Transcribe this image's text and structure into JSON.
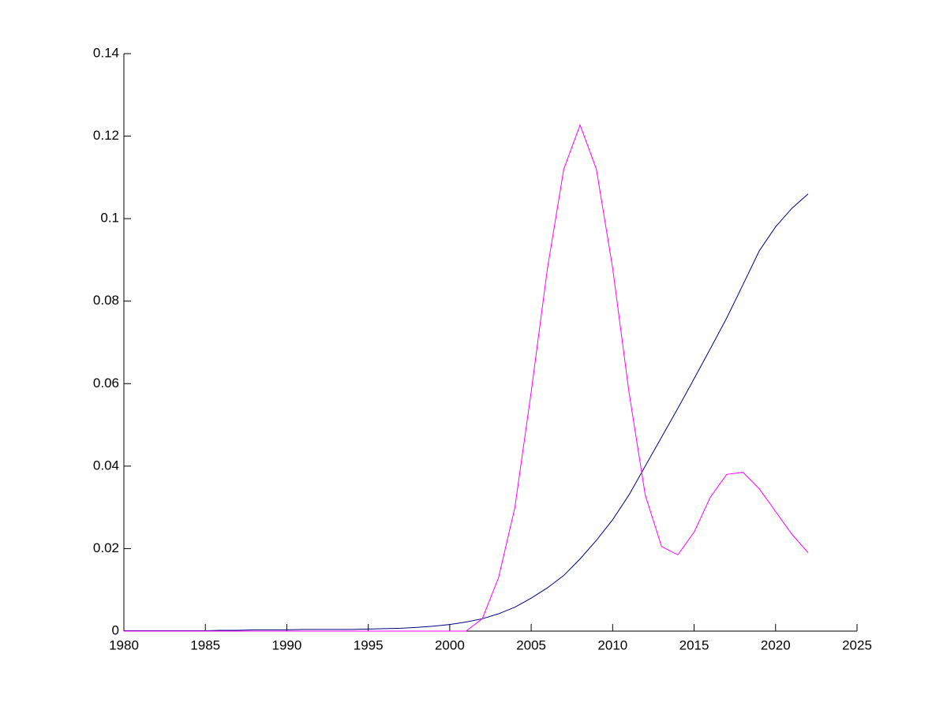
{
  "chart_data": {
    "type": "line",
    "x": [
      1980,
      1981,
      1982,
      1983,
      1984,
      1985,
      1986,
      1987,
      1988,
      1989,
      1990,
      1991,
      1992,
      1993,
      1994,
      1995,
      1996,
      1997,
      1998,
      1999,
      2000,
      2001,
      2002,
      2003,
      2004,
      2005,
      2006,
      2007,
      2008,
      2009,
      2010,
      2011,
      2012,
      2013,
      2014,
      2015,
      2016,
      2017,
      2018,
      2019,
      2020,
      2021,
      2022
    ],
    "series": [
      {
        "color": "#00007f",
        "values": [
          0.0001,
          0.0001,
          0.0001,
          0.0001,
          0.0001,
          0.0001,
          0.0002,
          0.0002,
          0.0003,
          0.0003,
          0.0003,
          0.0004,
          0.0004,
          0.0004,
          0.0004,
          0.0005,
          0.0006,
          0.0007,
          0.0009,
          0.0012,
          0.0016,
          0.0022,
          0.003,
          0.0042,
          0.0058,
          0.008,
          0.0105,
          0.0135,
          0.0175,
          0.022,
          0.027,
          0.033,
          0.04,
          0.047,
          0.054,
          0.0612,
          0.0685,
          0.0759,
          0.084,
          0.0922,
          0.098,
          0.1025,
          0.106
        ]
      },
      {
        "color": "#ff00ff",
        "values": [
          0,
          0,
          0,
          0,
          0,
          0,
          0,
          0,
          0,
          0,
          0,
          0,
          0,
          0,
          0,
          0,
          0,
          0,
          0,
          0,
          0,
          0,
          0.003,
          0.013,
          0.03,
          0.058,
          0.088,
          0.112,
          0.1227,
          0.112,
          0.088,
          0.058,
          0.033,
          0.0205,
          0.0185,
          0.024,
          0.0325,
          0.038,
          0.0385,
          0.0345,
          0.029,
          0.0235,
          0.019
        ]
      }
    ],
    "xlim": [
      1980,
      2025
    ],
    "xticks": [
      1980,
      1985,
      1990,
      1995,
      2000,
      2005,
      2010,
      2015,
      2020,
      2025
    ],
    "ylim": [
      0,
      0.14
    ],
    "yticks": [
      0,
      0.02,
      0.04,
      0.06,
      0.08,
      0.1,
      0.12,
      0.14
    ]
  }
}
